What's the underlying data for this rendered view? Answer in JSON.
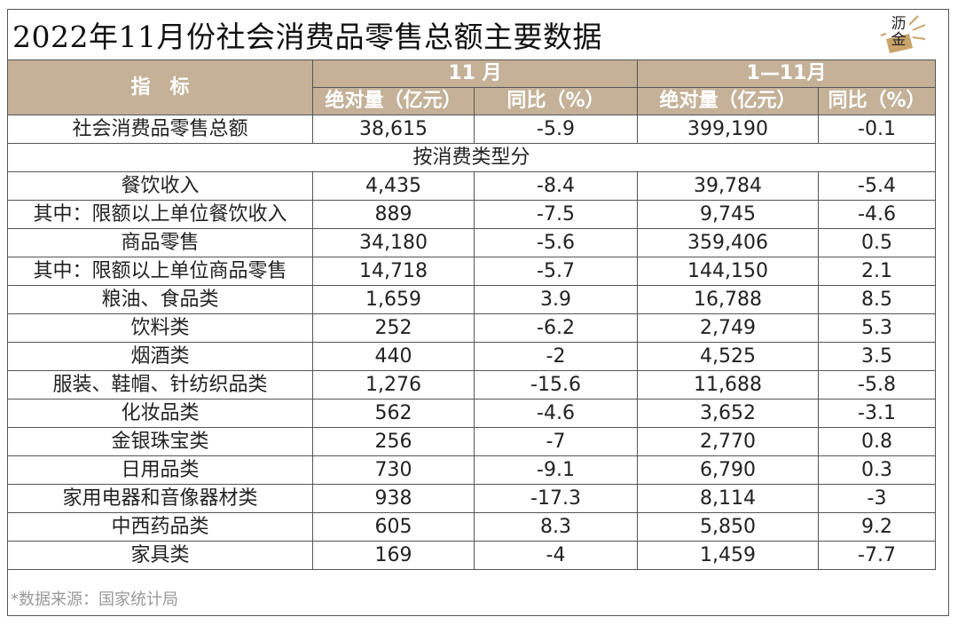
{
  "title": "2022年11月份社会消费品零售总额主要数据",
  "logo": {
    "text_top": "沥",
    "text_bottom": "金"
  },
  "header": {
    "indicator": "指　标",
    "period_a": "11 月",
    "period_b": "1—11月",
    "col_amount": "绝对量（亿元）",
    "col_yoy": "同比（%）"
  },
  "section_label": "按消费类型分",
  "total_row": {
    "name": "社会消费品零售总额",
    "m_amt": "38,615",
    "m_yoy": "-5.9",
    "y_amt": "399,190",
    "y_yoy": "-0.1"
  },
  "rows": [
    {
      "name": "餐饮收入",
      "m_amt": "4,435",
      "m_yoy": "-8.4",
      "y_amt": "39,784",
      "y_yoy": "-5.4"
    },
    {
      "name": "其中：限额以上单位餐饮收入",
      "m_amt": "889",
      "m_yoy": "-7.5",
      "y_amt": "9,745",
      "y_yoy": "-4.6"
    },
    {
      "name": "商品零售",
      "m_amt": "34,180",
      "m_yoy": "-5.6",
      "y_amt": "359,406",
      "y_yoy": "0.5"
    },
    {
      "name": "其中：限额以上单位商品零售",
      "m_amt": "14,718",
      "m_yoy": "-5.7",
      "y_amt": "144,150",
      "y_yoy": "2.1"
    },
    {
      "name": "粮油、食品类",
      "m_amt": "1,659",
      "m_yoy": "3.9",
      "y_amt": "16,788",
      "y_yoy": "8.5"
    },
    {
      "name": "饮料类",
      "m_amt": "252",
      "m_yoy": "-6.2",
      "y_amt": "2,749",
      "y_yoy": "5.3"
    },
    {
      "name": "烟酒类",
      "m_amt": "440",
      "m_yoy": "-2",
      "y_amt": "4,525",
      "y_yoy": "3.5"
    },
    {
      "name": "服装、鞋帽、针纺织品类",
      "m_amt": "1,276",
      "m_yoy": "-15.6",
      "y_amt": "11,688",
      "y_yoy": "-5.8"
    },
    {
      "name": "化妆品类",
      "m_amt": "562",
      "m_yoy": "-4.6",
      "y_amt": "3,652",
      "y_yoy": "-3.1"
    },
    {
      "name": "金银珠宝类",
      "m_amt": "256",
      "m_yoy": "-7",
      "y_amt": "2,770",
      "y_yoy": "0.8"
    },
    {
      "name": "日用品类",
      "m_amt": "730",
      "m_yoy": "-9.1",
      "y_amt": "6,790",
      "y_yoy": "0.3"
    },
    {
      "name": "家用电器和音像器材类",
      "m_amt": "938",
      "m_yoy": "-17.3",
      "y_amt": "8,114",
      "y_yoy": "-3"
    },
    {
      "name": "中西药品类",
      "m_amt": "605",
      "m_yoy": "8.3",
      "y_amt": "5,850",
      "y_yoy": "9.2"
    },
    {
      "name": "家具类",
      "m_amt": "169",
      "m_yoy": "-4",
      "y_amt": "1,459",
      "y_yoy": "-7.7"
    }
  ],
  "source": "*数据来源：国家统计局",
  "colors": {
    "header_bg": "#c4b197",
    "border": "#555555",
    "logo_accent": "#c9a46a"
  }
}
